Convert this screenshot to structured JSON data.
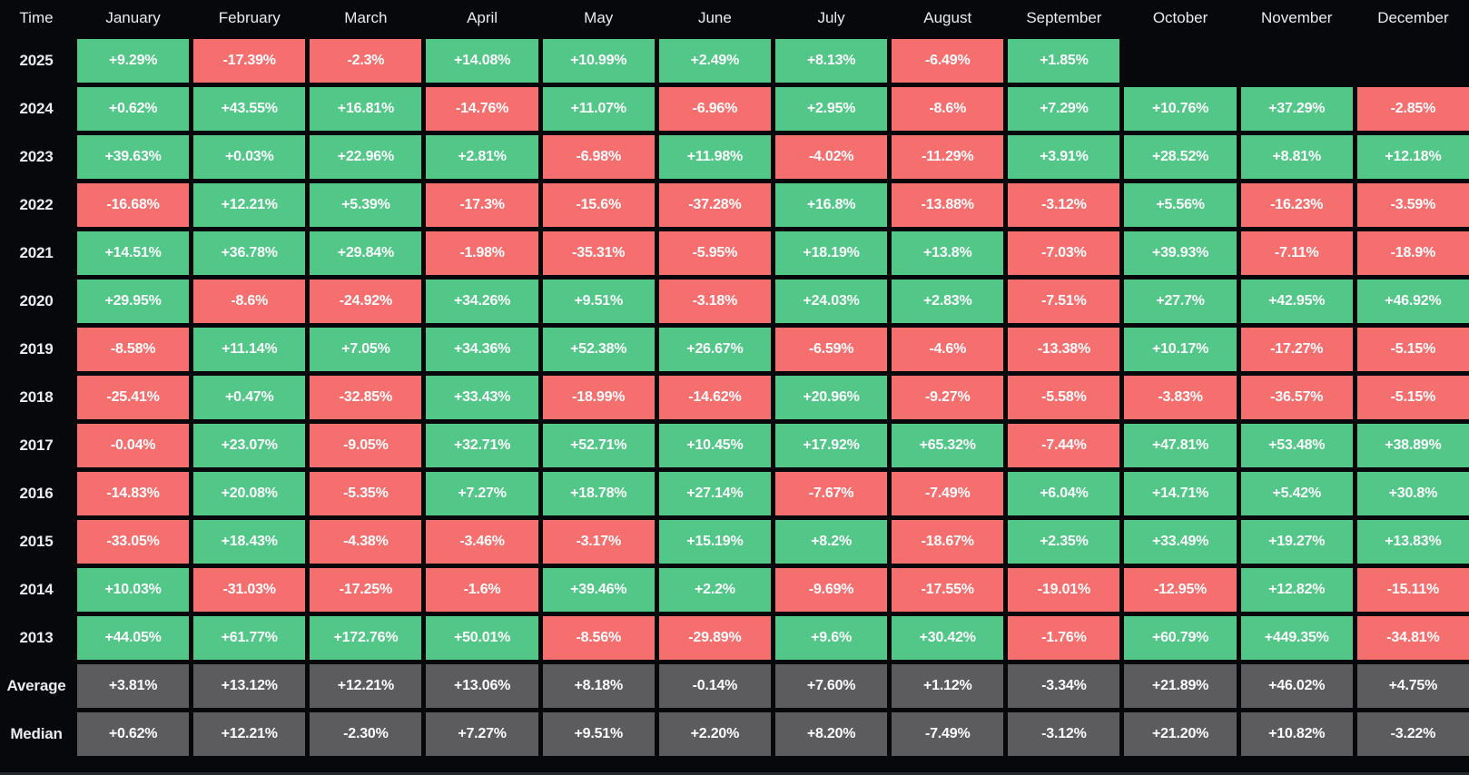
{
  "table": {
    "corner_label": "Time",
    "months": [
      "January",
      "February",
      "March",
      "April",
      "May",
      "June",
      "July",
      "August",
      "September",
      "October",
      "November",
      "December"
    ],
    "rows": [
      {
        "label": "2025",
        "type": "year",
        "values": [
          "+9.29%",
          "-17.39%",
          "-2.3%",
          "+14.08%",
          "+10.99%",
          "+2.49%",
          "+8.13%",
          "-6.49%",
          "+1.85%",
          "",
          "",
          ""
        ]
      },
      {
        "label": "2024",
        "type": "year",
        "values": [
          "+0.62%",
          "+43.55%",
          "+16.81%",
          "-14.76%",
          "+11.07%",
          "-6.96%",
          "+2.95%",
          "-8.6%",
          "+7.29%",
          "+10.76%",
          "+37.29%",
          "-2.85%"
        ]
      },
      {
        "label": "2023",
        "type": "year",
        "values": [
          "+39.63%",
          "+0.03%",
          "+22.96%",
          "+2.81%",
          "-6.98%",
          "+11.98%",
          "-4.02%",
          "-11.29%",
          "+3.91%",
          "+28.52%",
          "+8.81%",
          "+12.18%"
        ]
      },
      {
        "label": "2022",
        "type": "year",
        "values": [
          "-16.68%",
          "+12.21%",
          "+5.39%",
          "-17.3%",
          "-15.6%",
          "-37.28%",
          "+16.8%",
          "-13.88%",
          "-3.12%",
          "+5.56%",
          "-16.23%",
          "-3.59%"
        ]
      },
      {
        "label": "2021",
        "type": "year",
        "values": [
          "+14.51%",
          "+36.78%",
          "+29.84%",
          "-1.98%",
          "-35.31%",
          "-5.95%",
          "+18.19%",
          "+13.8%",
          "-7.03%",
          "+39.93%",
          "-7.11%",
          "-18.9%"
        ]
      },
      {
        "label": "2020",
        "type": "year",
        "values": [
          "+29.95%",
          "-8.6%",
          "-24.92%",
          "+34.26%",
          "+9.51%",
          "-3.18%",
          "+24.03%",
          "+2.83%",
          "-7.51%",
          "+27.7%",
          "+42.95%",
          "+46.92%"
        ]
      },
      {
        "label": "2019",
        "type": "year",
        "values": [
          "-8.58%",
          "+11.14%",
          "+7.05%",
          "+34.36%",
          "+52.38%",
          "+26.67%",
          "-6.59%",
          "-4.6%",
          "-13.38%",
          "+10.17%",
          "-17.27%",
          "-5.15%"
        ]
      },
      {
        "label": "2018",
        "type": "year",
        "values": [
          "-25.41%",
          "+0.47%",
          "-32.85%",
          "+33.43%",
          "-18.99%",
          "-14.62%",
          "+20.96%",
          "-9.27%",
          "-5.58%",
          "-3.83%",
          "-36.57%",
          "-5.15%"
        ]
      },
      {
        "label": "2017",
        "type": "year",
        "values": [
          "-0.04%",
          "+23.07%",
          "-9.05%",
          "+32.71%",
          "+52.71%",
          "+10.45%",
          "+17.92%",
          "+65.32%",
          "-7.44%",
          "+47.81%",
          "+53.48%",
          "+38.89%"
        ]
      },
      {
        "label": "2016",
        "type": "year",
        "values": [
          "-14.83%",
          "+20.08%",
          "-5.35%",
          "+7.27%",
          "+18.78%",
          "+27.14%",
          "-7.67%",
          "-7.49%",
          "+6.04%",
          "+14.71%",
          "+5.42%",
          "+30.8%"
        ]
      },
      {
        "label": "2015",
        "type": "year",
        "values": [
          "-33.05%",
          "+18.43%",
          "-4.38%",
          "-3.46%",
          "-3.17%",
          "+15.19%",
          "+8.2%",
          "-18.67%",
          "+2.35%",
          "+33.49%",
          "+19.27%",
          "+13.83%"
        ]
      },
      {
        "label": "2014",
        "type": "year",
        "values": [
          "+10.03%",
          "-31.03%",
          "-17.25%",
          "-1.6%",
          "+39.46%",
          "+2.2%",
          "-9.69%",
          "-17.55%",
          "-19.01%",
          "-12.95%",
          "+12.82%",
          "-15.11%"
        ]
      },
      {
        "label": "2013",
        "type": "year",
        "values": [
          "+44.05%",
          "+61.77%",
          "+172.76%",
          "+50.01%",
          "-8.56%",
          "-29.89%",
          "+9.6%",
          "+30.42%",
          "-1.76%",
          "+60.79%",
          "+449.35%",
          "-34.81%"
        ]
      },
      {
        "label": "Average",
        "type": "stat",
        "values": [
          "+3.81%",
          "+13.12%",
          "+12.21%",
          "+13.06%",
          "+8.18%",
          "-0.14%",
          "+7.60%",
          "+1.12%",
          "-3.34%",
          "+21.89%",
          "+46.02%",
          "+4.75%"
        ]
      },
      {
        "label": "Median",
        "type": "stat",
        "values": [
          "+0.62%",
          "+12.21%",
          "-2.30%",
          "+7.27%",
          "+9.51%",
          "+2.20%",
          "+8.20%",
          "-7.49%",
          "-3.12%",
          "+21.20%",
          "+10.82%",
          "-3.22%"
        ]
      }
    ]
  },
  "colors": {
    "positive": "#52c787",
    "negative": "#f56f6f",
    "stat": "#5c5c5e",
    "background": "#06080b",
    "label_text": "#e9ecef",
    "cell_text": "#fbfcfd",
    "bottom_edge": "#222a2f"
  },
  "chart_data": {
    "type": "heatmap",
    "title": "Monthly returns (%) by year",
    "x": [
      "January",
      "February",
      "March",
      "April",
      "May",
      "June",
      "July",
      "August",
      "September",
      "October",
      "November",
      "December"
    ],
    "y": [
      "2025",
      "2024",
      "2023",
      "2022",
      "2021",
      "2020",
      "2019",
      "2018",
      "2017",
      "2016",
      "2015",
      "2014",
      "2013",
      "Average",
      "Median"
    ],
    "values": [
      [
        9.29,
        -17.39,
        -2.3,
        14.08,
        10.99,
        2.49,
        8.13,
        -6.49,
        1.85,
        null,
        null,
        null
      ],
      [
        0.62,
        43.55,
        16.81,
        -14.76,
        11.07,
        -6.96,
        2.95,
        -8.6,
        7.29,
        10.76,
        37.29,
        -2.85
      ],
      [
        39.63,
        0.03,
        22.96,
        2.81,
        -6.98,
        11.98,
        -4.02,
        -11.29,
        3.91,
        28.52,
        8.81,
        12.18
      ],
      [
        -16.68,
        12.21,
        5.39,
        -17.3,
        -15.6,
        -37.28,
        16.8,
        -13.88,
        -3.12,
        5.56,
        -16.23,
        -3.59
      ],
      [
        14.51,
        36.78,
        29.84,
        -1.98,
        -35.31,
        -5.95,
        18.19,
        13.8,
        -7.03,
        39.93,
        -7.11,
        -18.9
      ],
      [
        29.95,
        -8.6,
        -24.92,
        34.26,
        9.51,
        -3.18,
        24.03,
        2.83,
        -7.51,
        27.7,
        42.95,
        46.92
      ],
      [
        -8.58,
        11.14,
        7.05,
        34.36,
        52.38,
        26.67,
        -6.59,
        -4.6,
        -13.38,
        10.17,
        -17.27,
        -5.15
      ],
      [
        -25.41,
        0.47,
        -32.85,
        33.43,
        -18.99,
        -14.62,
        20.96,
        -9.27,
        -5.58,
        -3.83,
        -36.57,
        -5.15
      ],
      [
        -0.04,
        23.07,
        -9.05,
        32.71,
        52.71,
        10.45,
        17.92,
        65.32,
        -7.44,
        47.81,
        53.48,
        38.89
      ],
      [
        -14.83,
        20.08,
        -5.35,
        7.27,
        18.78,
        27.14,
        -7.67,
        -7.49,
        6.04,
        14.71,
        5.42,
        30.8
      ],
      [
        -33.05,
        18.43,
        -4.38,
        -3.46,
        -3.17,
        15.19,
        8.2,
        -18.67,
        2.35,
        33.49,
        19.27,
        13.83
      ],
      [
        10.03,
        -31.03,
        -17.25,
        -1.6,
        39.46,
        2.2,
        -9.69,
        -17.55,
        -19.01,
        -12.95,
        12.82,
        -15.11
      ],
      [
        44.05,
        61.77,
        172.76,
        50.01,
        -8.56,
        -29.89,
        9.6,
        30.42,
        -1.76,
        60.79,
        449.35,
        -34.81
      ],
      [
        3.81,
        13.12,
        12.21,
        13.06,
        8.18,
        -0.14,
        7.6,
        1.12,
        -3.34,
        21.89,
        46.02,
        4.75
      ],
      [
        0.62,
        12.21,
        -2.3,
        7.27,
        9.51,
        2.2,
        8.2,
        -7.49,
        -3.12,
        21.2,
        10.82,
        -3.22
      ]
    ],
    "legend_position": "none",
    "grid": false,
    "color_rule": "green = positive, red = negative, gray = Average/Median summary rows"
  }
}
